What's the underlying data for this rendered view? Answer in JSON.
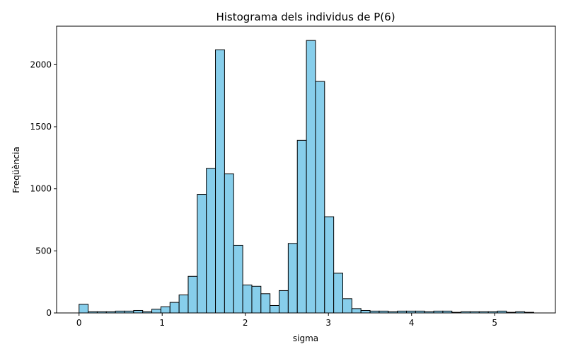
{
  "chart_data": {
    "type": "bar",
    "title": "Histograma dels individus de P(6)",
    "xlabel": "sigma",
    "ylabel": "Freqüència",
    "xlim": [
      -0.27,
      5.73
    ],
    "ylim": [
      0,
      2310
    ],
    "grid": false,
    "legend": "none",
    "bar_color": "#87ceeb",
    "edge_color": "#000000",
    "bin_edges": [
      0.0,
      0.1094,
      0.2188,
      0.3282,
      0.4376,
      0.547,
      0.6564,
      0.7658,
      0.8752,
      0.9846,
      1.094,
      1.2034,
      1.3128,
      1.4222,
      1.5316,
      1.641,
      1.7504,
      1.8598,
      1.9692,
      2.0786,
      2.188,
      2.2974,
      2.4068,
      2.5162,
      2.6256,
      2.735,
      2.8444,
      2.9538,
      3.0632,
      3.1726,
      3.282,
      3.3914,
      3.5008,
      3.6102,
      3.7196,
      3.829,
      3.9384,
      4.0478,
      4.1572,
      4.2666,
      4.376,
      4.4854,
      4.5948,
      4.7042,
      4.8136,
      4.923,
      5.0324,
      5.1418,
      5.2512,
      5.3606,
      5.47
    ],
    "values": [
      70,
      10,
      10,
      10,
      15,
      15,
      20,
      10,
      30,
      50,
      85,
      145,
      295,
      955,
      1165,
      2120,
      1120,
      545,
      225,
      215,
      155,
      60,
      180,
      560,
      1390,
      2195,
      1865,
      775,
      320,
      115,
      35,
      20,
      15,
      15,
      10,
      15,
      15,
      15,
      10,
      15,
      15,
      5,
      10,
      10,
      10,
      10,
      15,
      5,
      10,
      5
    ],
    "x_ticks": [
      0,
      1,
      2,
      3,
      4,
      5
    ],
    "x_tick_labels": [
      "0",
      "1",
      "2",
      "3",
      "4",
      "5"
    ],
    "y_ticks": [
      0,
      500,
      1000,
      1500,
      2000
    ],
    "y_tick_labels": [
      "0",
      "500",
      "1000",
      "1500",
      "2000"
    ]
  }
}
